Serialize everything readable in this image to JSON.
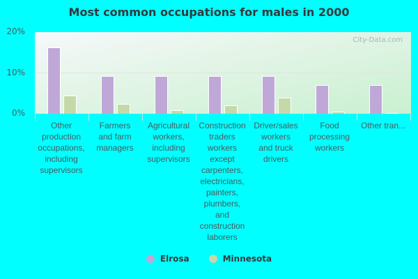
{
  "chart_data": {
    "type": "bar",
    "title": "Most common occupations for males in 2000",
    "xlabel": "",
    "ylabel": "",
    "ylim": [
      0,
      20
    ],
    "yticks": [
      "0%",
      "10%",
      "20%"
    ],
    "grid": true,
    "legend_position": "bottom",
    "categories": [
      "Other production occupations, including supervisors",
      "Farmers and farm managers",
      "Agricultural workers, including supervisors",
      "Construction traders workers except carpenters, electricians, painters, plumbers, and construction laborers",
      "Driver/sales workers and truck drivers",
      "Food processing workers",
      "Other tran..."
    ],
    "series": [
      {
        "name": "Elrosa",
        "color": "#bfa8d8",
        "values": [
          16.2,
          9.2,
          9.2,
          9.2,
          9.2,
          7.0,
          7.0
        ]
      },
      {
        "name": "Minnesota",
        "color": "#c5d9a8",
        "values": [
          4.4,
          2.4,
          0.8,
          2.0,
          3.9,
          0.5,
          0.2
        ]
      }
    ],
    "watermark": "City-Data.com"
  },
  "labels_html": [
    [
      "Other",
      "production",
      "occupations,",
      "including",
      "supervisors"
    ],
    [
      "Farmers",
      "and farm",
      "managers"
    ],
    [
      "Agricultural",
      "workers,",
      "including",
      "supervisors"
    ],
    [
      "Construction",
      "traders",
      "workers",
      "except",
      "carpenters,",
      "electricians,",
      "painters,",
      "plumbers,",
      "and",
      "construction",
      "laborers"
    ],
    [
      "Driver/sales",
      "workers",
      "and truck",
      "drivers"
    ],
    [
      "Food",
      "processing",
      "workers"
    ],
    [
      "Other tran..."
    ]
  ]
}
